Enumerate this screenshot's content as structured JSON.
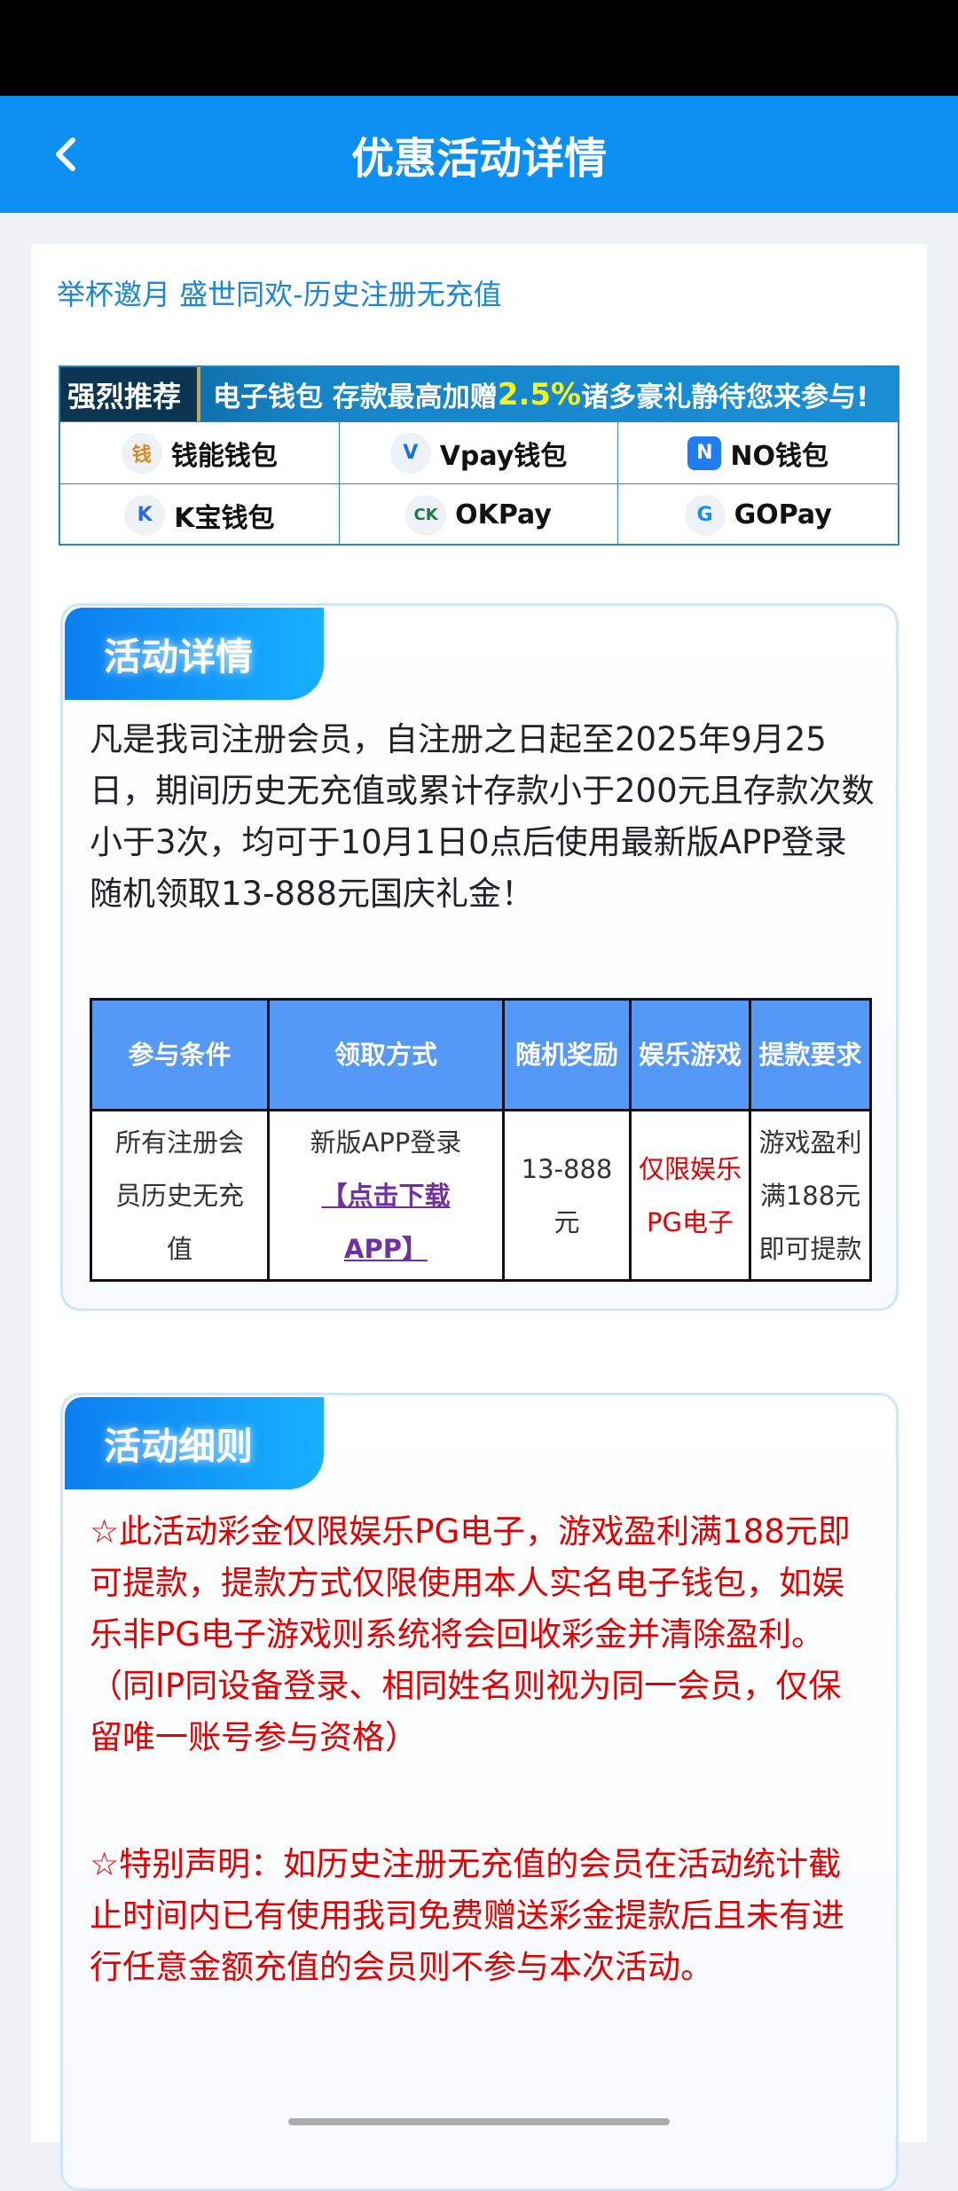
{
  "header": {
    "title": "优惠活动详情",
    "back_icon": "chevron-left-icon"
  },
  "subtitle": "举杯邀月 盛世同欢-历史注册无充值",
  "banner": {
    "tag": "强烈推荐",
    "text1": "电子钱包  存款最高加赠",
    "highlight": "2.5%",
    "text2": " 诸多豪礼静待您来参与!",
    "wallets": [
      {
        "name": "钱能钱包",
        "logo": "钱"
      },
      {
        "name": "Vpay钱包",
        "logo": "V"
      },
      {
        "name": "NO钱包",
        "logo": "N"
      },
      {
        "name": "K宝钱包",
        "logo": "K"
      },
      {
        "name": "OKPay",
        "logo": "CK"
      },
      {
        "name": "GOPay",
        "logo": "G"
      }
    ]
  },
  "details": {
    "title": "活动详情",
    "text": "凡是我司注册会员，自注册之日起至2025年9月25日，期间历史无充值或累计存款小于200元且存款次数小于3次，均可于10月1日0点后使用最新版APP登录随机领取13-888元国庆礼金！",
    "table": {
      "headers": [
        "参与条件",
        "领取方式",
        "随机奖励",
        "娱乐游戏",
        "提款要求"
      ],
      "row": {
        "condition": "所有注册会员历史无充值",
        "method": "新版APP登录",
        "link": "【点击下载APP】",
        "reward": "13-888元",
        "game": "仅限娱乐PG电子",
        "withdraw": "游戏盈利满188元即可提款"
      }
    }
  },
  "rules": {
    "title": "活动细则",
    "p1": "☆此活动彩金仅限娱乐PG电子，游戏盈利满188元即可提款，提款方式仅限使用本人实名电子钱包，如娱乐非PG电子游戏则系统将会回收彩金并清除盈利。（同IP同设备登录、相同姓名则视为同一会员，仅保留唯一账号参与资格）",
    "p2": "☆特别声明：如历史注册无充值的会员在活动统计截止时间内已有使用我司免费赠送彩金提款后且未有进行任意金额充值的会员则不参与本次活动。"
  },
  "colors": {
    "header": "#0d90f2",
    "table_header": "#5499f7",
    "rule_text": "#e30000",
    "link": "#7030a0"
  }
}
